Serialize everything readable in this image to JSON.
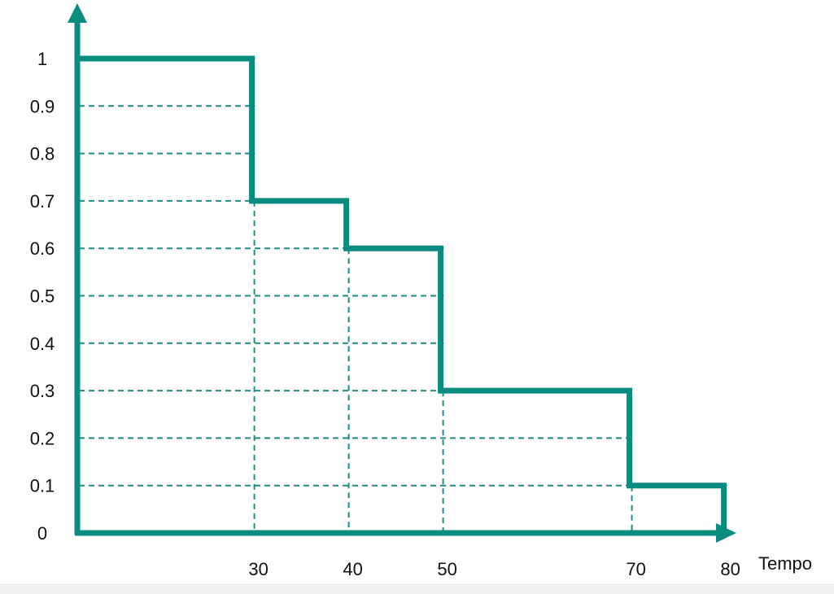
{
  "chart_data": {
    "type": "line",
    "step": true,
    "xlabel": "Tempo",
    "ylabel": "",
    "xticks": [
      30,
      40,
      50,
      70,
      80
    ],
    "yticks": [
      0,
      0.1,
      0.2,
      0.3,
      0.4,
      0.5,
      0.6,
      0.7,
      0.8,
      0.9,
      1
    ],
    "ytick_labels": [
      "0",
      "0.1",
      "0.2",
      "0.3",
      "0.4",
      "0.5",
      "0.6",
      "0.7",
      "0.8",
      "0.9",
      "1"
    ],
    "xlim": [
      11.5,
      83
    ],
    "ylim": [
      0,
      1.1
    ],
    "grid": "dashed",
    "series": [
      {
        "x": [
          11.5,
          30,
          30,
          40,
          40,
          50,
          50,
          70,
          70,
          80,
          80
        ],
        "y": [
          1,
          1,
          0.7,
          0.7,
          0.6,
          0.6,
          0.3,
          0.3,
          0.1,
          0.1,
          0
        ]
      }
    ],
    "colors": {
      "line": "#0a8c80",
      "grid": "#1a8f85",
      "axis": "#0a8c80"
    }
  }
}
